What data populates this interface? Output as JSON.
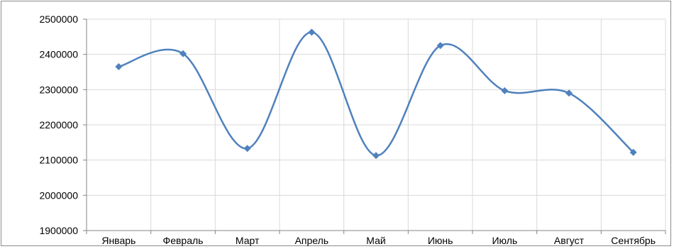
{
  "chart_data": {
    "type": "line",
    "smooth": true,
    "categories": [
      "Январь",
      "Февраль",
      "Март",
      "Апрель",
      "Май",
      "Июнь",
      "Июль",
      "Август",
      "Сентябрь"
    ],
    "series": [
      {
        "values": [
          2365000,
          2402000,
          2133000,
          2463000,
          2113000,
          2425000,
          2297000,
          2290000,
          2122000
        ],
        "color": "#4f81bd"
      }
    ],
    "ylim": [
      1900000,
      2500000
    ],
    "yticks": [
      2500000,
      2400000,
      2300000,
      2200000,
      2100000,
      2000000,
      1900000
    ],
    "ytick_labels": [
      "2500000",
      "2400000",
      "2300000",
      "2200000",
      "2100000",
      "2000000",
      "1900000"
    ],
    "grid": {
      "horizontal": true,
      "vertical": true
    },
    "legend": "none",
    "title": "",
    "xlabel": "",
    "ylabel": ""
  }
}
